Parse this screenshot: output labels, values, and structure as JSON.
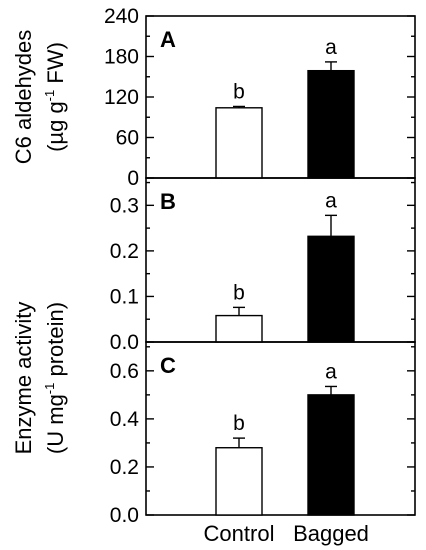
{
  "chart_data": {
    "type": "bar",
    "categories": [
      "Control",
      "Bagged"
    ],
    "bar_colors": [
      "#ffffff",
      "#000000"
    ],
    "axis_color": "#000000",
    "grid": false,
    "shared_ylabels": [
      {
        "panels": [
          "A"
        ],
        "line1": "C6 aldehydes",
        "line2_parts": [
          {
            "t": "(µg g",
            "sup": false
          },
          {
            "t": "-1",
            "sup": true
          },
          {
            "t": " FW)",
            "sup": false
          }
        ]
      },
      {
        "panels": [
          "B",
          "C"
        ],
        "line1": "Enzyme activity",
        "line2_parts": [
          {
            "t": "(U mg",
            "sup": false
          },
          {
            "t": "-1",
            "sup": true
          },
          {
            "t": " protein)",
            "sup": false
          }
        ]
      }
    ],
    "panels": [
      {
        "letter": "A",
        "ylim": [
          0,
          240
        ],
        "yticks": [
          0,
          60,
          120,
          180,
          240
        ],
        "ytick_labels": [
          "0",
          "60",
          "120",
          "180",
          "240"
        ],
        "values": [
          104,
          159
        ],
        "errors": [
          2,
          13
        ],
        "sig": [
          "b",
          "a"
        ]
      },
      {
        "letter": "B",
        "ylim": [
          0,
          0.36
        ],
        "yticks": [
          0.0,
          0.1,
          0.2,
          0.3
        ],
        "ytick_labels": [
          "0.0",
          "0.1",
          "0.2",
          "0.3"
        ],
        "values": [
          0.058,
          0.232
        ],
        "errors": [
          0.018,
          0.046
        ],
        "sig": [
          "b",
          "a"
        ]
      },
      {
        "letter": "C",
        "ylim": [
          0,
          0.72
        ],
        "yticks": [
          0.0,
          0.2,
          0.4,
          0.6
        ],
        "ytick_labels": [
          "0.0",
          "0.2",
          "0.4",
          "0.6"
        ],
        "values": [
          0.28,
          0.5
        ],
        "errors": [
          0.04,
          0.035
        ],
        "sig": [
          "b",
          "a"
        ]
      }
    ]
  }
}
